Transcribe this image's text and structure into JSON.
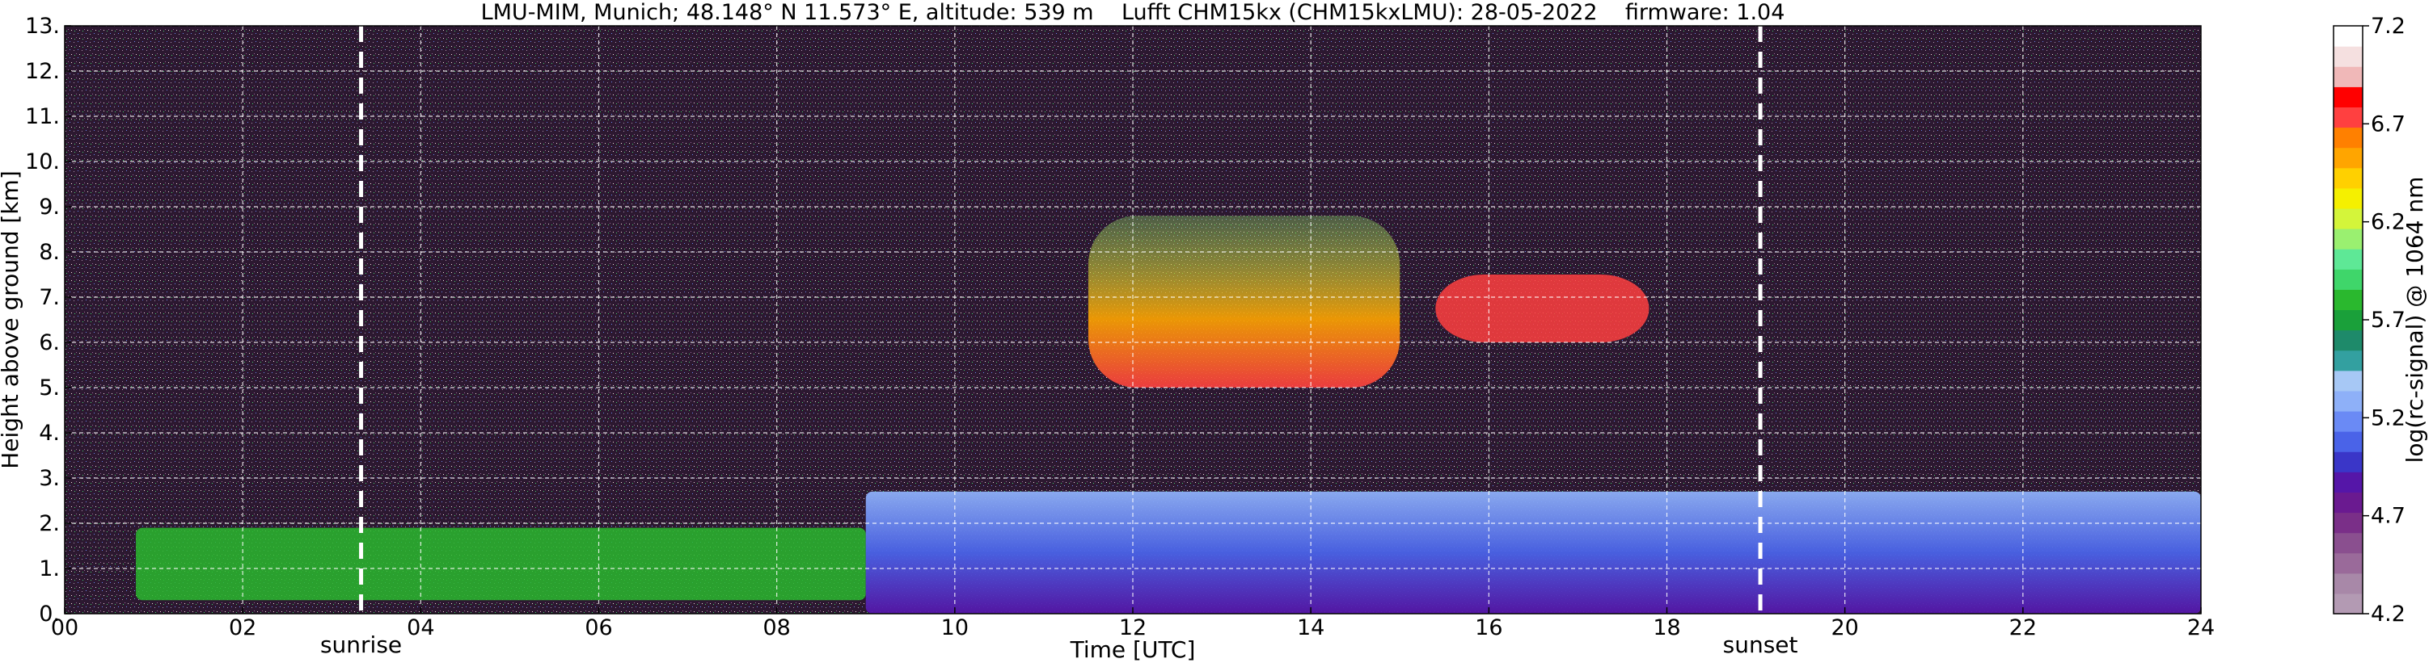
{
  "chart_data": {
    "type": "heatmap",
    "title": "LMU-MIM, Munich; 48.148° N 11.573° E, altitude: 539 m    Lufft CHM15kx (CHM15kxLMU): 28-05-2022    firmware: 1.04",
    "xlabel": "Time [UTC]",
    "ylabel": "Height above ground [km]",
    "xlim": [
      0,
      24
    ],
    "ylim": [
      0,
      13
    ],
    "x_ticks": [
      0,
      2,
      4,
      6,
      8,
      10,
      12,
      14,
      16,
      18,
      20,
      22,
      24
    ],
    "x_tick_labels": [
      "00",
      "02",
      "04",
      "06",
      "08",
      "10",
      "12",
      "14",
      "16",
      "18",
      "20",
      "22",
      "24"
    ],
    "y_ticks": [
      0,
      1,
      2,
      3,
      4,
      5,
      6,
      7,
      8,
      9,
      10,
      11,
      12,
      13
    ],
    "y_tick_labels": [
      "0.",
      "1.",
      "2.",
      "3.",
      "4.",
      "5.",
      "6.",
      "7.",
      "8.",
      "9.",
      "10.",
      "11.",
      "12.",
      "13."
    ],
    "grid": true,
    "markers": [
      {
        "label": "sunrise",
        "x": 3.33
      },
      {
        "label": "sunset",
        "x": 19.05
      }
    ],
    "colorbar": {
      "label": "log(rc-signal) @ 1064 nm",
      "range": [
        4.2,
        7.2
      ],
      "ticks": [
        4.2,
        4.7,
        5.2,
        5.7,
        6.2,
        6.7,
        7.2
      ],
      "tick_labels": [
        "4.2",
        "4.7",
        "5.2",
        "5.7",
        "6.2",
        "6.7",
        "7.2"
      ],
      "colors": [
        "#b39ab3",
        "#a888a8",
        "#9a6a9a",
        "#8a4f8f",
        "#7a2f88",
        "#6a1a90",
        "#5516a8",
        "#3a36c8",
        "#4a63e8",
        "#6a8af5",
        "#8eb0f8",
        "#a7c8f5",
        "#33a0a0",
        "#1e8a6a",
        "#1aa03a",
        "#2ab82e",
        "#3fd66a",
        "#5ee896",
        "#9af070",
        "#d4f53a",
        "#f5f000",
        "#ffd000",
        "#ffa500",
        "#ff8000",
        "#ff4040",
        "#ff0000",
        "#f0b8b8",
        "#f5e0e0",
        "#ffffff"
      ]
    },
    "features": [
      {
        "name": "aerosol layer (green)",
        "x_range": [
          0.8,
          9.0
        ],
        "height_range": [
          0.3,
          1.9
        ]
      },
      {
        "name": "boundary layer (blue)",
        "x_range": [
          9.0,
          24.0
        ],
        "height_range": [
          0.0,
          2.7
        ]
      },
      {
        "name": "cirrus cloud (orange/white)",
        "x_range": [
          11.5,
          15.0
        ],
        "height_range": [
          5.0,
          8.8
        ]
      },
      {
        "name": "cloud patches",
        "x_range": [
          15.4,
          17.8
        ],
        "height_range": [
          6.0,
          7.5
        ]
      }
    ]
  }
}
